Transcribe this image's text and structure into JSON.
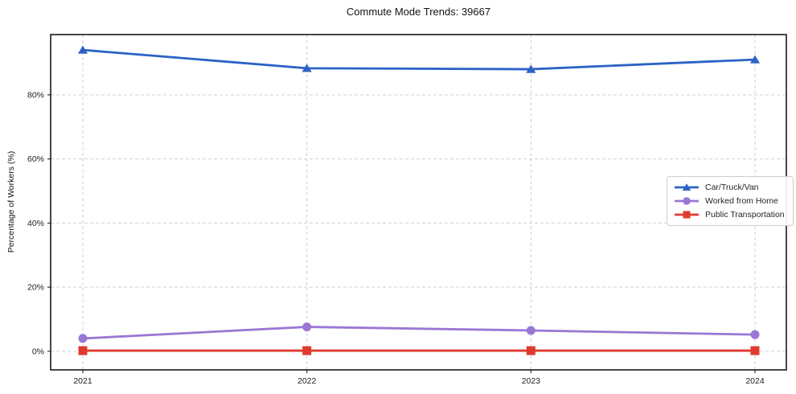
{
  "figure": {
    "background": "#ffffff",
    "frame_color": "#1a1a1a",
    "grid_color": "#d0d0d0"
  },
  "chart_data": {
    "type": "line",
    "title": "Commute Mode Trends: 39667",
    "xlabel": "",
    "ylabel": "Percentage of Workers (%)",
    "categories": [
      "2021",
      "2022",
      "2023",
      "2024"
    ],
    "y_ticks": [
      0,
      20,
      40,
      60,
      80
    ],
    "y_tick_labels": [
      "0%",
      "20%",
      "40%",
      "60%",
      "80%"
    ],
    "ylim": [
      -5.8,
      98.8
    ],
    "grid": true,
    "grid_style": "dashed",
    "legend_position": "center right",
    "series": [
      {
        "name": "Car/Truck/Van",
        "color": "#2c62c6",
        "marker": "triangle",
        "values": [
          94.0,
          88.3,
          88.0,
          91.0
        ]
      },
      {
        "name": "Worked from Home",
        "color": "#9b77d4",
        "marker": "circle",
        "values": [
          4.0,
          7.6,
          6.5,
          5.2
        ]
      },
      {
        "name": "Public Transportation",
        "color": "#e0392f",
        "marker": "square",
        "values": [
          0.2,
          0.2,
          0.2,
          0.2
        ]
      }
    ]
  }
}
